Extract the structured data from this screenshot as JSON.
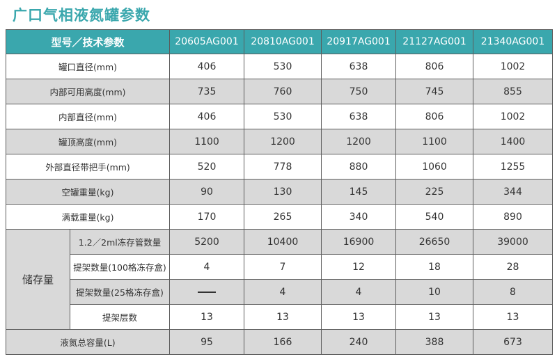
{
  "title": "广口气相液氮罐参数",
  "header": {
    "param": "型号／技术参数",
    "models": [
      "20605AG001",
      "20810AG001",
      "20917AG001",
      "21127AG001",
      "21340AG001"
    ]
  },
  "rows": [
    {
      "label": "罐口直径(mm)",
      "values": [
        "406",
        "530",
        "638",
        "806",
        "1002"
      ]
    },
    {
      "label": "内部可用高度(mm)",
      "values": [
        "735",
        "760",
        "750",
        "745",
        "855"
      ]
    },
    {
      "label": "内部直径(mm)",
      "values": [
        "406",
        "530",
        "638",
        "806",
        "1002"
      ]
    },
    {
      "label": "罐顶高度(mm)",
      "values": [
        "1100",
        "1200",
        "1200",
        "1100",
        "1400"
      ]
    },
    {
      "label": "外部直径带把手(mm)",
      "values": [
        "520",
        "778",
        "880",
        "1060",
        "1255"
      ]
    },
    {
      "label": "空罐重量(kg)",
      "values": [
        "90",
        "130",
        "145",
        "225",
        "344"
      ]
    },
    {
      "label": "满载重量(kg)",
      "values": [
        "170",
        "265",
        "340",
        "540",
        "890"
      ]
    }
  ],
  "storage": {
    "group_label": "储存量",
    "rows": [
      {
        "label": "1.2／2ml冻存管数量",
        "values": [
          "5200",
          "10400",
          "16900",
          "26650",
          "39000"
        ]
      },
      {
        "label": "提架数量(100格冻存盒)",
        "values": [
          "4",
          "7",
          "12",
          "18",
          "28"
        ]
      },
      {
        "label": "提架数量(25格冻存盒)",
        "values": [
          "—",
          "4",
          "4",
          "10",
          "8"
        ]
      },
      {
        "label": "提架层数",
        "values": [
          "13",
          "13",
          "13",
          "13",
          "13"
        ]
      }
    ]
  },
  "footer_row": {
    "label": "液氮总容量(L)",
    "values": [
      "95",
      "166",
      "240",
      "388",
      "673"
    ]
  },
  "colors": {
    "accent": "#3aa7ad",
    "gray_row": "#d9d9d9",
    "border": "#5c5c5c"
  }
}
